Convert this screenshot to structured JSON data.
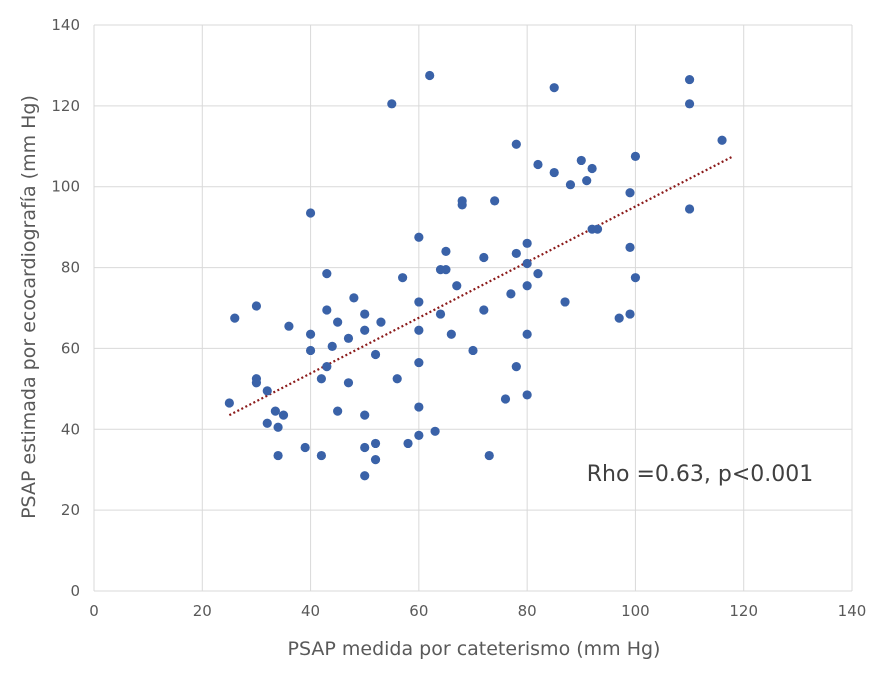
{
  "chart_data": {
    "type": "scatter",
    "xlabel": "PSAP medida por cateterismo (mm Hg)",
    "ylabel": "PSAP estimada por ecocardiografía (mm Hg)",
    "xlim": [
      0,
      140
    ],
    "ylim": [
      0,
      140
    ],
    "xticks": [
      0,
      20,
      40,
      60,
      80,
      100,
      120,
      140
    ],
    "yticks": [
      0,
      20,
      40,
      60,
      80,
      100,
      120,
      140
    ],
    "grid": true,
    "annotation": "Rho =0.63, p<0.001",
    "point_color": "#3a62a8",
    "trendline": {
      "style": "dotted",
      "color": "#8b1a1a",
      "from": [
        25,
        43.5
      ],
      "to": [
        118,
        107.5
      ]
    },
    "points": [
      [
        25,
        46.5
      ],
      [
        26,
        67.5
      ],
      [
        30,
        70.5
      ],
      [
        30,
        52.5
      ],
      [
        30,
        51.5
      ],
      [
        32,
        41.5
      ],
      [
        32,
        49.5
      ],
      [
        33.5,
        44.5
      ],
      [
        34,
        40.5
      ],
      [
        34,
        33.5
      ],
      [
        35,
        43.5
      ],
      [
        36,
        65.5
      ],
      [
        39,
        35.5
      ],
      [
        40,
        93.5
      ],
      [
        40,
        63.5
      ],
      [
        40,
        59.5
      ],
      [
        42,
        33.5
      ],
      [
        42,
        52.5
      ],
      [
        43,
        78.5
      ],
      [
        43,
        69.5
      ],
      [
        43,
        55.5
      ],
      [
        44,
        60.5
      ],
      [
        45,
        66.5
      ],
      [
        45,
        44.5
      ],
      [
        47,
        62.5
      ],
      [
        47,
        51.5
      ],
      [
        48,
        72.5
      ],
      [
        50,
        68.5
      ],
      [
        50,
        64.5
      ],
      [
        50,
        43.5
      ],
      [
        50,
        35.5
      ],
      [
        50,
        28.5
      ],
      [
        52,
        58.5
      ],
      [
        52,
        36.5
      ],
      [
        52,
        32.5
      ],
      [
        53,
        66.5
      ],
      [
        55,
        120.5
      ],
      [
        56,
        52.5
      ],
      [
        57,
        77.5
      ],
      [
        58,
        36.5
      ],
      [
        60,
        87.5
      ],
      [
        60,
        71.5
      ],
      [
        60,
        64.5
      ],
      [
        60,
        56.5
      ],
      [
        60,
        45.5
      ],
      [
        60,
        38.5
      ],
      [
        62,
        127.5
      ],
      [
        63,
        39.5
      ],
      [
        64,
        79.5
      ],
      [
        64,
        68.5
      ],
      [
        65,
        84
      ],
      [
        65,
        79.5
      ],
      [
        66,
        63.5
      ],
      [
        67,
        75.5
      ],
      [
        68,
        96.5
      ],
      [
        68,
        95.5
      ],
      [
        70,
        59.5
      ],
      [
        72,
        82.5
      ],
      [
        72,
        69.5
      ],
      [
        73,
        33.5
      ],
      [
        74,
        96.5
      ],
      [
        76,
        47.5
      ],
      [
        77,
        73.5
      ],
      [
        78,
        110.5
      ],
      [
        78,
        83.5
      ],
      [
        78,
        55.5
      ],
      [
        80,
        86
      ],
      [
        80,
        81
      ],
      [
        80,
        75.5
      ],
      [
        80,
        63.5
      ],
      [
        80,
        48.5
      ],
      [
        82,
        105.5
      ],
      [
        82,
        78.5
      ],
      [
        85,
        124.5
      ],
      [
        85,
        103.5
      ],
      [
        87,
        71.5
      ],
      [
        88,
        100.5
      ],
      [
        90,
        106.5
      ],
      [
        91,
        101.5
      ],
      [
        92,
        104.5
      ],
      [
        92,
        89.5
      ],
      [
        93,
        89.5
      ],
      [
        97,
        67.5
      ],
      [
        99,
        98.5
      ],
      [
        99,
        85
      ],
      [
        99,
        68.5
      ],
      [
        100,
        107.5
      ],
      [
        100,
        77.5
      ],
      [
        110,
        126.5
      ],
      [
        110,
        120.5
      ],
      [
        110,
        94.5
      ],
      [
        116,
        111.5
      ]
    ]
  }
}
